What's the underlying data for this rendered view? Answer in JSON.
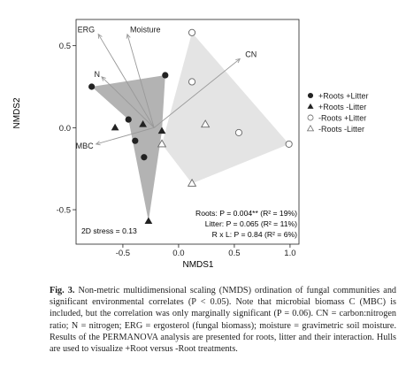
{
  "chart_data": {
    "type": "scatter",
    "xlabel": "NMDS1",
    "ylabel": "NMDS2",
    "xlim": [
      -0.92,
      1.08
    ],
    "ylim": [
      -0.71,
      0.66
    ],
    "xticks": [
      "-0.5",
      "0.0",
      "0.5",
      "1.0"
    ],
    "xtick_values": [
      -0.5,
      0.0,
      0.5,
      1.0
    ],
    "yticks": [
      "0.5",
      "0.0",
      "-0.5"
    ],
    "ytick_values": [
      0.5,
      0.0,
      -0.5
    ],
    "grid": false,
    "legend_position": "right",
    "series": [
      {
        "name": "+Roots +Litter",
        "marker": "filled-circle",
        "points": [
          [
            -0.78,
            0.25
          ],
          [
            -0.12,
            0.32
          ],
          [
            -0.45,
            0.05
          ],
          [
            -0.39,
            -0.08
          ],
          [
            -0.31,
            -0.18
          ]
        ]
      },
      {
        "name": "+Roots -Litter",
        "marker": "filled-triangle",
        "points": [
          [
            -0.27,
            -0.57
          ],
          [
            -0.15,
            -0.02
          ],
          [
            -0.57,
            0.0
          ],
          [
            -0.32,
            0.02
          ]
        ]
      },
      {
        "name": "-Roots +Litter",
        "marker": "open-circle",
        "points": [
          [
            0.12,
            0.58
          ],
          [
            0.12,
            0.28
          ],
          [
            0.54,
            -0.03
          ],
          [
            0.99,
            -0.1
          ]
        ]
      },
      {
        "name": "-Roots -Litter",
        "marker": "open-triangle",
        "points": [
          [
            -0.15,
            -0.1
          ],
          [
            0.12,
            -0.34
          ],
          [
            0.24,
            0.02
          ]
        ]
      }
    ],
    "hulls": [
      {
        "group": "+Roots",
        "color": "#b3b3b3",
        "points": [
          [
            -0.78,
            0.25
          ],
          [
            -0.12,
            0.32
          ],
          [
            -0.15,
            -0.02
          ],
          [
            -0.27,
            -0.57
          ],
          [
            -0.45,
            0.05
          ]
        ]
      },
      {
        "group": "-Roots",
        "color": "#e4e4e4",
        "points": [
          [
            0.12,
            0.58
          ],
          [
            0.99,
            -0.1
          ],
          [
            0.12,
            -0.34
          ],
          [
            -0.15,
            -0.1
          ]
        ]
      }
    ],
    "vectors": [
      {
        "label": "ERG",
        "x": -0.72,
        "y": 0.57
      },
      {
        "label": "Moisture",
        "x": -0.46,
        "y": 0.57
      },
      {
        "label": "N",
        "x": -0.69,
        "y": 0.31
      },
      {
        "label": "CN",
        "x": 0.55,
        "y": 0.42
      },
      {
        "label": "MBC",
        "x": -0.74,
        "y": -0.1
      }
    ],
    "vector_origin": [
      -0.22,
      0.0
    ],
    "annotations": {
      "stress": "2D stress = 0.13",
      "roots": "Roots: P = 0.004** (R² = 19%)",
      "litter": "Litter: P = 0.065 (R² = 11%)",
      "interaction": "R x L: P = 0.84 (R² = 6%)"
    },
    "colors": {
      "filled_marker": "#222222",
      "open_marker": "#666666",
      "vector": "#999999",
      "axis": "#222222"
    }
  },
  "caption": {
    "label": "Fig. 3.",
    "text": "Non-metric multidimensional scaling (NMDS) ordination of fungal communities and significant environmental correlates (P < 0.05). Note that microbial biomass C (MBC) is included, but the correlation was only marginally significant (P = 0.06). CN = carbon:nitrogen ratio; N = nitrogen; ERG = ergosterol (fungal biomass); moisture = gravimetric soil moisture. Results of the PERMANOVA analysis are presented for roots, litter and their interaction. Hulls are used to visualize +Root versus -Root treatments."
  }
}
